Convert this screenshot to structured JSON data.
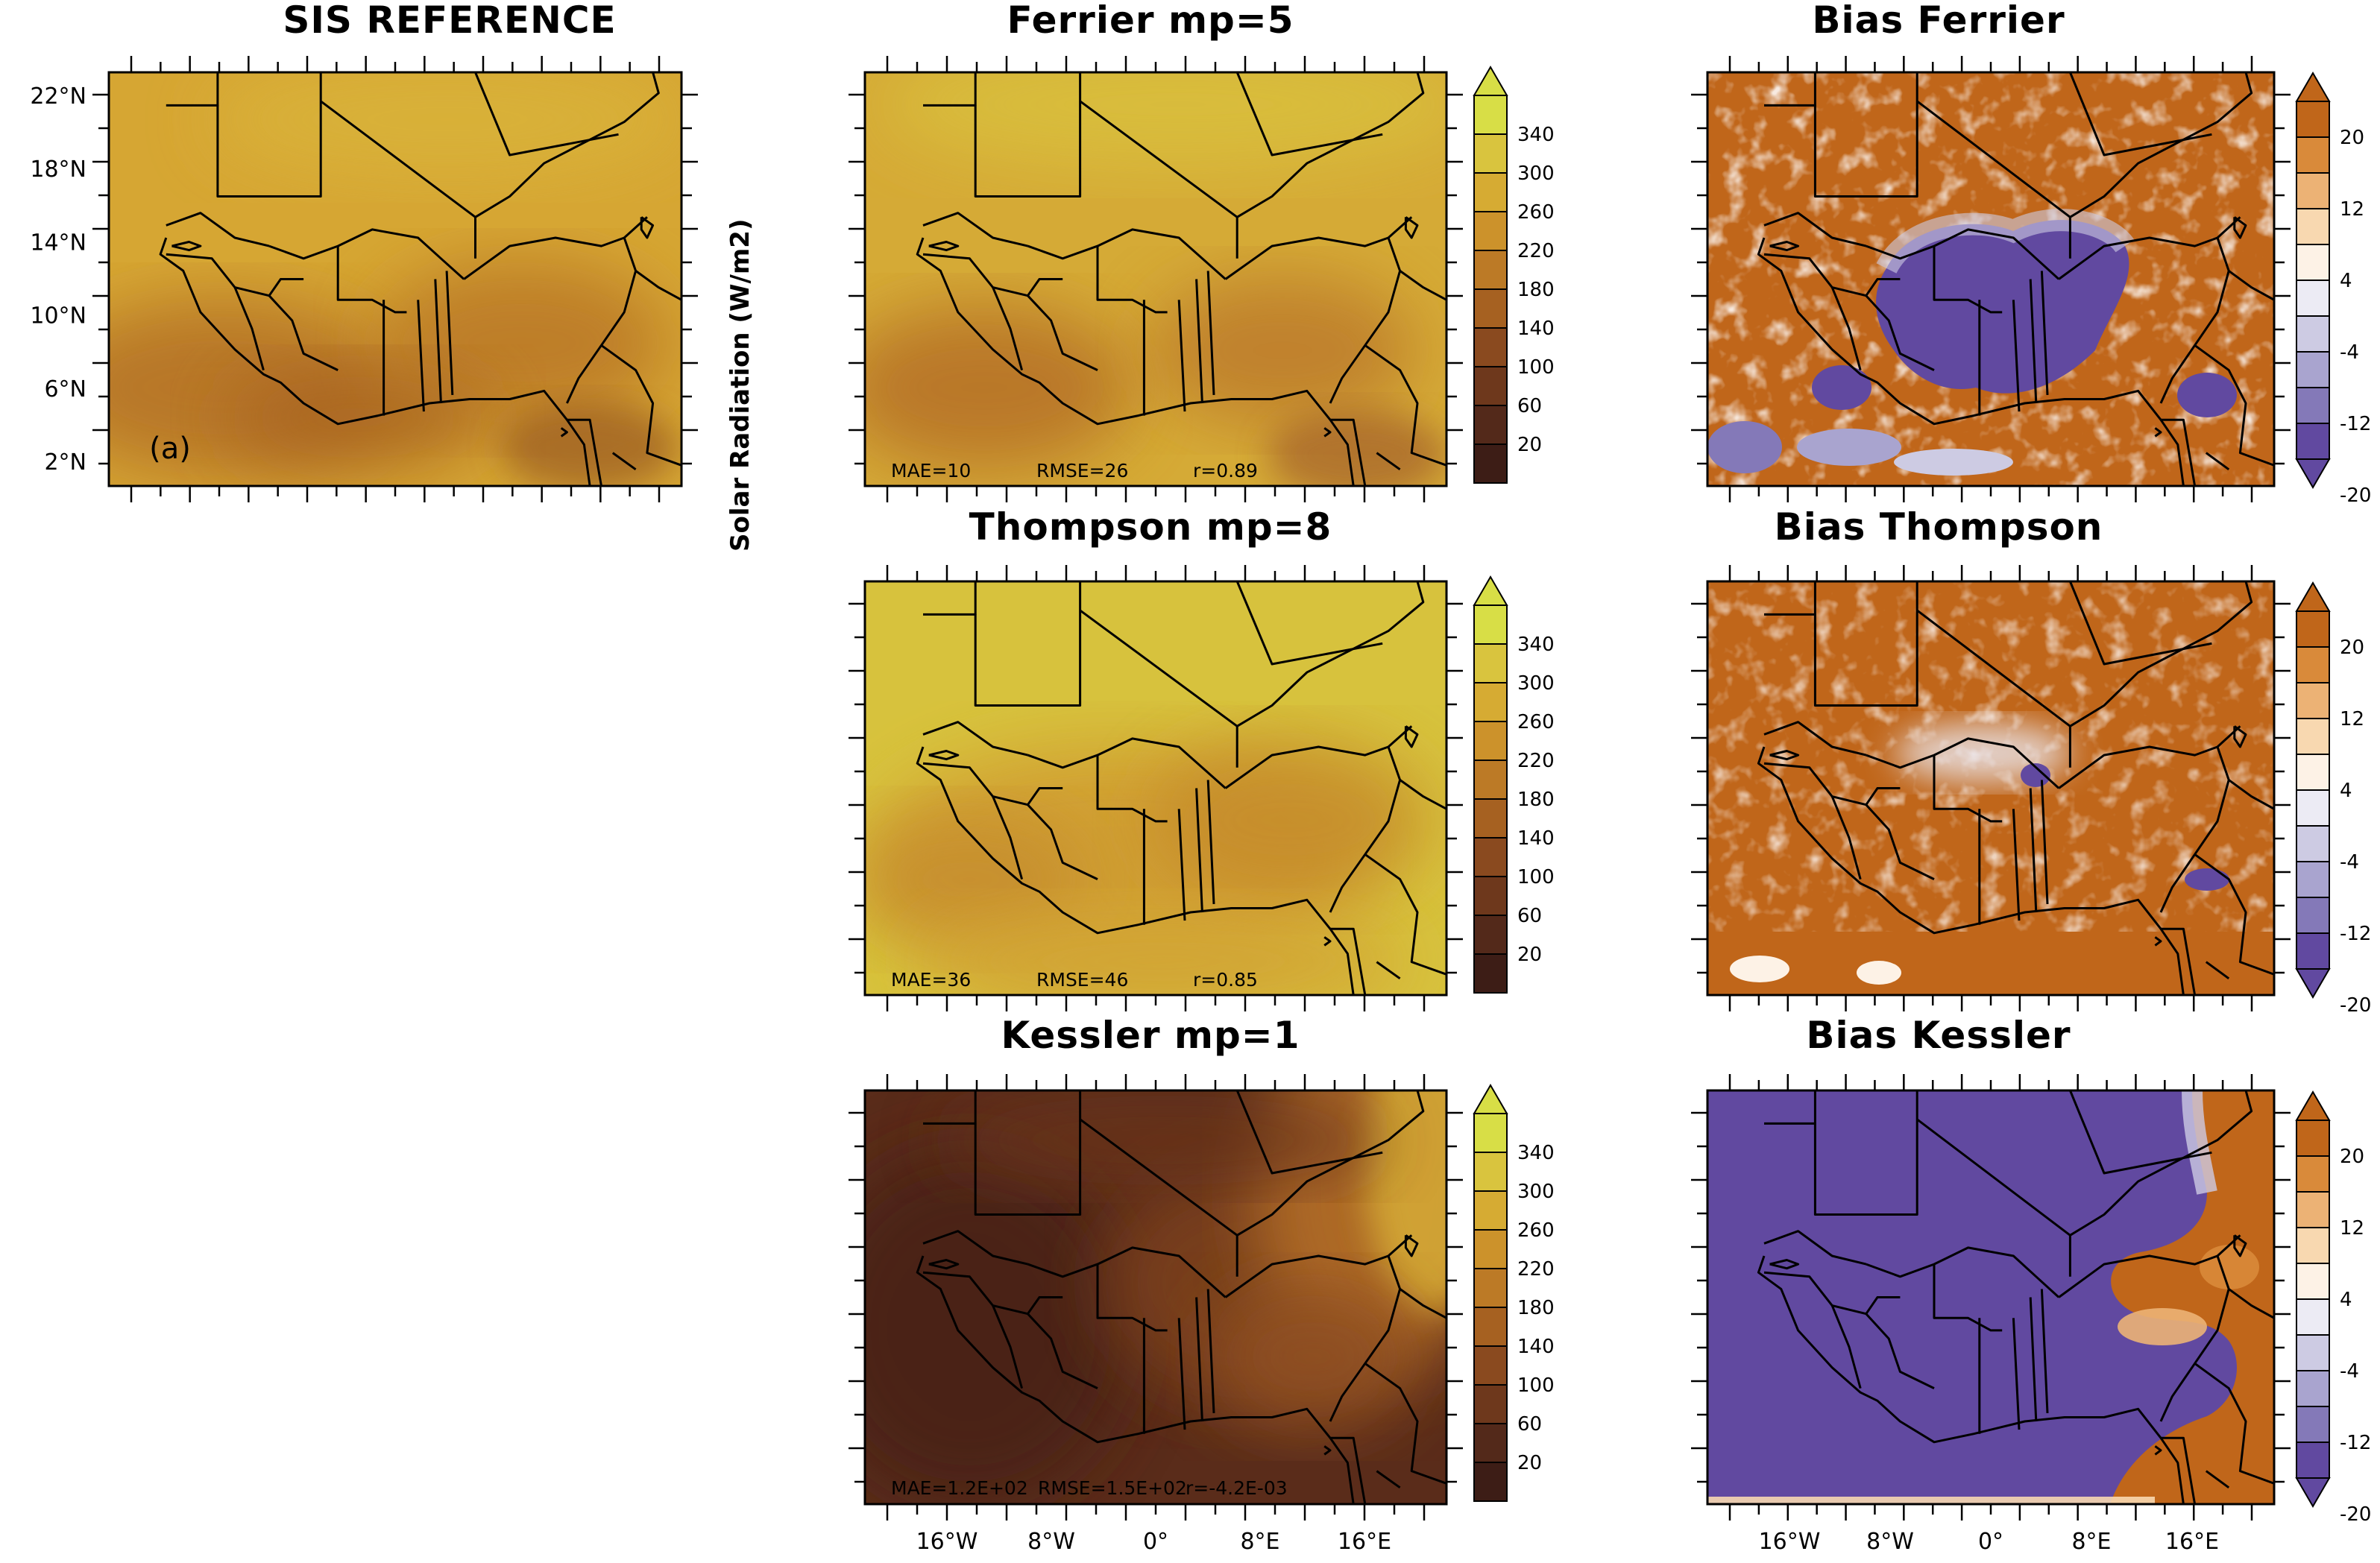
{
  "figure": {
    "colorbar_title": "Solar Radiation (W/m2)",
    "panel_tag": "(a)"
  },
  "axes": {
    "lat_ticks": [
      "22°N",
      "18°N",
      "14°N",
      "10°N",
      "6°N",
      "2°N"
    ],
    "lon_ticks": [
      "16°W",
      "8°W",
      "0°",
      "8°E",
      "16°E"
    ]
  },
  "colorbars": {
    "radiation": {
      "levels": [
        "340",
        "300",
        "260",
        "220",
        "180",
        "140",
        "100",
        "60",
        "20"
      ],
      "colors": [
        "#d8de46",
        "#d9c43e",
        "#d6ab33",
        "#cc922b",
        "#bc7a26",
        "#a66121",
        "#8a4a1f",
        "#6e381c",
        "#53291a",
        "#3d1d16"
      ]
    },
    "bias": {
      "levels": [
        "20",
        "12",
        "4",
        "-4",
        "-12",
        "-20"
      ],
      "colors": [
        "#c0661a",
        "#d98a3a",
        "#ecb275",
        "#f8d8b0",
        "#fdf2e6",
        "#ecebf4",
        "#cdcbe3",
        "#a9a4cf",
        "#8479b8",
        "#6149a0"
      ]
    }
  },
  "panels": {
    "sis": {
      "title": "SIS REFERENCE"
    },
    "ferrier": {
      "title": "Ferrier  mp=5",
      "stats": {
        "mae": "MAE=10",
        "rmse": "RMSE=26",
        "r": "r=0.89"
      }
    },
    "thompson": {
      "title": "Thompson  mp=8",
      "stats": {
        "mae": "MAE=36",
        "rmse": "RMSE=46",
        "r": "r=0.85"
      }
    },
    "kessler": {
      "title": "Kessler  mp=1",
      "stats": {
        "mae": "MAE=1.2E+02",
        "rmse": "RMSE=1.5E+02",
        "r": "r=-4.2E-03"
      }
    },
    "bias_ferrier": {
      "title": "Bias  Ferrier"
    },
    "bias_thompson": {
      "title": "Bias  Thompson"
    },
    "bias_kessler": {
      "title": "Bias  Kessler"
    }
  },
  "chart_data": {
    "type": "heatmap",
    "variable": "Solar Radiation (W/m2)",
    "lat_ticks": [
      22,
      18,
      14,
      10,
      6,
      2
    ],
    "lon_ticks": [
      -16,
      -8,
      0,
      8,
      16
    ],
    "radiation_levels": [
      20,
      60,
      100,
      140,
      180,
      220,
      260,
      300,
      340
    ],
    "bias_levels": [
      -20,
      -12,
      -4,
      4,
      12,
      20
    ],
    "panels": [
      {
        "title": "SIS REFERENCE",
        "field": "radiation",
        "tag": "(a)"
      },
      {
        "title": "Ferrier  mp=5",
        "field": "radiation",
        "MAE": 10,
        "RMSE": 26,
        "r": 0.89
      },
      {
        "title": "Thompson  mp=8",
        "field": "radiation",
        "MAE": 36,
        "RMSE": 46,
        "r": 0.85
      },
      {
        "title": "Kessler  mp=1",
        "field": "radiation",
        "MAE": 120,
        "RMSE": 150,
        "r": -0.0042
      },
      {
        "title": "Bias  Ferrier",
        "field": "bias"
      },
      {
        "title": "Bias  Thompson",
        "field": "bias"
      },
      {
        "title": "Bias  Kessler",
        "field": "bias"
      }
    ]
  }
}
